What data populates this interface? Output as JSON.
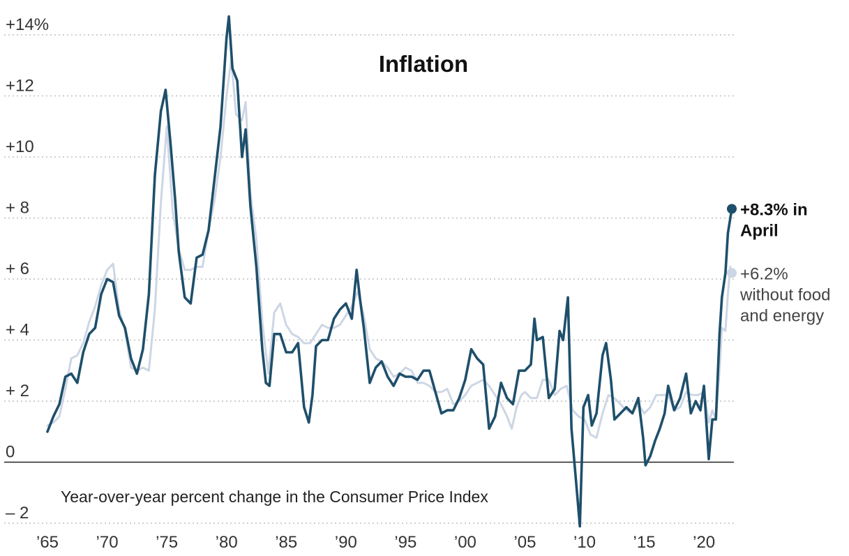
{
  "chart_data": {
    "type": "line",
    "title": "Inflation",
    "subtitle": "Year-over-year percent change in the Consumer Price Index",
    "xlim": [
      1965,
      2022.33
    ],
    "ylim": [
      -2,
      14
    ],
    "y_ticks": [
      {
        "value": 14,
        "label": "+14%"
      },
      {
        "value": 12,
        "label": "+12"
      },
      {
        "value": 10,
        "label": "+10"
      },
      {
        "value": 8,
        "label": "+ 8"
      },
      {
        "value": 6,
        "label": "+ 6"
      },
      {
        "value": 4,
        "label": "+ 4"
      },
      {
        "value": 2,
        "label": "+ 2"
      },
      {
        "value": 0,
        "label": "0"
      },
      {
        "value": -2,
        "label": "– 2"
      }
    ],
    "x_ticks": [
      {
        "value": 1965,
        "label": "’65"
      },
      {
        "value": 1970,
        "label": "’70"
      },
      {
        "value": 1975,
        "label": "’75"
      },
      {
        "value": 1980,
        "label": "’80"
      },
      {
        "value": 1985,
        "label": "’85"
      },
      {
        "value": 1990,
        "label": "’90"
      },
      {
        "value": 1995,
        "label": "’95"
      },
      {
        "value": 2000,
        "label": "’00"
      },
      {
        "value": 2005,
        "label": "’05"
      },
      {
        "value": 2010,
        "label": "’10"
      },
      {
        "value": 2015,
        "label": "’15"
      },
      {
        "value": 2020,
        "label": "’20"
      }
    ],
    "grid": true,
    "series": [
      {
        "key": "headline",
        "color": "#1e4f6b",
        "label_lines": [
          "+8.3% in",
          "April"
        ],
        "end_value": 8.3,
        "points": [
          [
            1965.0,
            1.0
          ],
          [
            1965.5,
            1.5
          ],
          [
            1966.0,
            1.9
          ],
          [
            1966.5,
            2.8
          ],
          [
            1967.0,
            2.9
          ],
          [
            1967.5,
            2.6
          ],
          [
            1968.0,
            3.6
          ],
          [
            1968.5,
            4.2
          ],
          [
            1969.0,
            4.4
          ],
          [
            1969.5,
            5.5
          ],
          [
            1970.0,
            6.0
          ],
          [
            1970.5,
            5.9
          ],
          [
            1971.0,
            4.8
          ],
          [
            1971.5,
            4.4
          ],
          [
            1972.0,
            3.4
          ],
          [
            1972.5,
            2.9
          ],
          [
            1973.0,
            3.7
          ],
          [
            1973.5,
            5.5
          ],
          [
            1974.0,
            9.4
          ],
          [
            1974.5,
            11.5
          ],
          [
            1974.9,
            12.2
          ],
          [
            1975.3,
            10.5
          ],
          [
            1975.7,
            8.6
          ],
          [
            1976.0,
            6.9
          ],
          [
            1976.5,
            5.4
          ],
          [
            1977.0,
            5.2
          ],
          [
            1977.5,
            6.7
          ],
          [
            1978.0,
            6.8
          ],
          [
            1978.5,
            7.6
          ],
          [
            1979.0,
            9.3
          ],
          [
            1979.5,
            11.0
          ],
          [
            1980.0,
            13.9
          ],
          [
            1980.2,
            14.6
          ],
          [
            1980.5,
            12.9
          ],
          [
            1980.9,
            12.5
          ],
          [
            1981.3,
            10.0
          ],
          [
            1981.6,
            10.9
          ],
          [
            1982.0,
            8.4
          ],
          [
            1982.5,
            6.4
          ],
          [
            1983.0,
            3.7
          ],
          [
            1983.3,
            2.6
          ],
          [
            1983.6,
            2.5
          ],
          [
            1984.0,
            4.2
          ],
          [
            1984.5,
            4.2
          ],
          [
            1985.0,
            3.6
          ],
          [
            1985.5,
            3.6
          ],
          [
            1986.0,
            3.9
          ],
          [
            1986.5,
            1.8
          ],
          [
            1986.9,
            1.3
          ],
          [
            1987.2,
            2.2
          ],
          [
            1987.5,
            3.8
          ],
          [
            1988.0,
            4.0
          ],
          [
            1988.5,
            4.0
          ],
          [
            1989.0,
            4.7
          ],
          [
            1989.5,
            5.0
          ],
          [
            1990.0,
            5.2
          ],
          [
            1990.5,
            4.7
          ],
          [
            1990.9,
            6.3
          ],
          [
            1991.2,
            5.3
          ],
          [
            1991.5,
            4.4
          ],
          [
            1992.0,
            2.6
          ],
          [
            1992.5,
            3.1
          ],
          [
            1993.0,
            3.3
          ],
          [
            1993.5,
            2.8
          ],
          [
            1994.0,
            2.5
          ],
          [
            1994.5,
            2.9
          ],
          [
            1995.0,
            2.8
          ],
          [
            1995.5,
            2.8
          ],
          [
            1996.0,
            2.7
          ],
          [
            1996.5,
            3.0
          ],
          [
            1997.0,
            3.0
          ],
          [
            1997.5,
            2.3
          ],
          [
            1998.0,
            1.6
          ],
          [
            1998.5,
            1.7
          ],
          [
            1999.0,
            1.7
          ],
          [
            1999.5,
            2.1
          ],
          [
            2000.0,
            2.7
          ],
          [
            2000.5,
            3.7
          ],
          [
            2001.0,
            3.4
          ],
          [
            2001.5,
            3.2
          ],
          [
            2002.0,
            1.1
          ],
          [
            2002.5,
            1.5
          ],
          [
            2003.0,
            2.6
          ],
          [
            2003.5,
            2.1
          ],
          [
            2004.0,
            1.9
          ],
          [
            2004.5,
            3.0
          ],
          [
            2005.0,
            3.0
          ],
          [
            2005.5,
            3.2
          ],
          [
            2005.8,
            4.7
          ],
          [
            2006.0,
            4.0
          ],
          [
            2006.5,
            4.1
          ],
          [
            2007.0,
            2.1
          ],
          [
            2007.5,
            2.4
          ],
          [
            2007.9,
            4.3
          ],
          [
            2008.2,
            4.0
          ],
          [
            2008.6,
            5.4
          ],
          [
            2008.9,
            1.1
          ],
          [
            2009.3,
            -0.7
          ],
          [
            2009.6,
            -2.1
          ],
          [
            2009.9,
            1.8
          ],
          [
            2010.3,
            2.2
          ],
          [
            2010.6,
            1.2
          ],
          [
            2011.0,
            1.6
          ],
          [
            2011.5,
            3.5
          ],
          [
            2011.8,
            3.9
          ],
          [
            2012.2,
            2.7
          ],
          [
            2012.5,
            1.4
          ],
          [
            2013.0,
            1.6
          ],
          [
            2013.5,
            1.8
          ],
          [
            2014.0,
            1.6
          ],
          [
            2014.5,
            2.1
          ],
          [
            2014.9,
            0.8
          ],
          [
            2015.1,
            -0.1
          ],
          [
            2015.5,
            0.2
          ],
          [
            2015.9,
            0.7
          ],
          [
            2016.3,
            1.1
          ],
          [
            2016.7,
            1.6
          ],
          [
            2017.0,
            2.5
          ],
          [
            2017.5,
            1.7
          ],
          [
            2018.0,
            2.1
          ],
          [
            2018.5,
            2.9
          ],
          [
            2018.9,
            1.6
          ],
          [
            2019.3,
            2.0
          ],
          [
            2019.7,
            1.7
          ],
          [
            2020.0,
            2.5
          ],
          [
            2020.4,
            0.1
          ],
          [
            2020.7,
            1.4
          ],
          [
            2021.0,
            1.4
          ],
          [
            2021.3,
            4.2
          ],
          [
            2021.5,
            5.4
          ],
          [
            2021.8,
            6.2
          ],
          [
            2022.0,
            7.5
          ],
          [
            2022.33,
            8.3
          ]
        ]
      },
      {
        "key": "core",
        "color": "#cdd6e4",
        "label_lines": [
          "+6.2%",
          "without food",
          "and energy"
        ],
        "end_value": 6.2,
        "points": [
          [
            1965.0,
            1.2
          ],
          [
            1965.5,
            1.3
          ],
          [
            1966.0,
            1.5
          ],
          [
            1966.5,
            2.4
          ],
          [
            1967.0,
            3.4
          ],
          [
            1967.5,
            3.5
          ],
          [
            1968.0,
            3.9
          ],
          [
            1968.5,
            4.6
          ],
          [
            1969.0,
            5.1
          ],
          [
            1969.5,
            5.8
          ],
          [
            1970.0,
            6.3
          ],
          [
            1970.5,
            6.5
          ],
          [
            1971.0,
            5.0
          ],
          [
            1971.5,
            4.3
          ],
          [
            1972.0,
            3.1
          ],
          [
            1972.5,
            3.0
          ],
          [
            1973.0,
            3.1
          ],
          [
            1973.5,
            3.0
          ],
          [
            1974.0,
            5.0
          ],
          [
            1974.5,
            8.5
          ],
          [
            1975.0,
            11.0
          ],
          [
            1975.5,
            8.2
          ],
          [
            1976.0,
            7.0
          ],
          [
            1976.5,
            6.3
          ],
          [
            1977.0,
            6.3
          ],
          [
            1977.5,
            6.4
          ],
          [
            1978.0,
            6.4
          ],
          [
            1978.5,
            7.6
          ],
          [
            1979.0,
            8.6
          ],
          [
            1979.5,
            10.0
          ],
          [
            1980.0,
            12.0
          ],
          [
            1980.4,
            13.2
          ],
          [
            1980.8,
            11.4
          ],
          [
            1981.3,
            11.2
          ],
          [
            1981.6,
            11.8
          ],
          [
            1982.0,
            8.8
          ],
          [
            1982.5,
            7.3
          ],
          [
            1983.0,
            4.6
          ],
          [
            1983.5,
            2.9
          ],
          [
            1984.0,
            4.9
          ],
          [
            1984.5,
            5.2
          ],
          [
            1985.0,
            4.5
          ],
          [
            1985.5,
            4.2
          ],
          [
            1986.0,
            4.1
          ],
          [
            1986.5,
            3.9
          ],
          [
            1987.0,
            3.9
          ],
          [
            1987.5,
            4.2
          ],
          [
            1988.0,
            4.5
          ],
          [
            1988.5,
            4.4
          ],
          [
            1989.0,
            4.4
          ],
          [
            1989.5,
            4.5
          ],
          [
            1990.0,
            4.8
          ],
          [
            1990.5,
            5.1
          ],
          [
            1991.0,
            5.6
          ],
          [
            1991.5,
            4.8
          ],
          [
            1992.0,
            3.7
          ],
          [
            1992.5,
            3.4
          ],
          [
            1993.0,
            3.3
          ],
          [
            1993.5,
            3.1
          ],
          [
            1994.0,
            2.8
          ],
          [
            1994.5,
            2.9
          ],
          [
            1995.0,
            3.1
          ],
          [
            1995.5,
            3.0
          ],
          [
            1996.0,
            2.6
          ],
          [
            1996.5,
            2.6
          ],
          [
            1997.0,
            2.5
          ],
          [
            1997.5,
            2.3
          ],
          [
            1998.0,
            2.3
          ],
          [
            1998.5,
            2.4
          ],
          [
            1999.0,
            1.9
          ],
          [
            1999.5,
            2.0
          ],
          [
            2000.0,
            2.2
          ],
          [
            2000.5,
            2.5
          ],
          [
            2001.0,
            2.6
          ],
          [
            2001.5,
            2.7
          ],
          [
            2002.0,
            2.5
          ],
          [
            2002.5,
            2.2
          ],
          [
            2003.0,
            1.9
          ],
          [
            2003.5,
            1.5
          ],
          [
            2003.9,
            1.1
          ],
          [
            2004.3,
            1.8
          ],
          [
            2004.7,
            2.2
          ],
          [
            2005.0,
            2.3
          ],
          [
            2005.5,
            2.1
          ],
          [
            2006.0,
            2.1
          ],
          [
            2006.5,
            2.7
          ],
          [
            2007.0,
            2.7
          ],
          [
            2007.5,
            2.2
          ],
          [
            2008.0,
            2.4
          ],
          [
            2008.5,
            2.5
          ],
          [
            2009.0,
            1.7
          ],
          [
            2009.5,
            1.5
          ],
          [
            2010.0,
            1.4
          ],
          [
            2010.5,
            0.9
          ],
          [
            2011.0,
            0.8
          ],
          [
            2011.5,
            1.6
          ],
          [
            2012.0,
            2.2
          ],
          [
            2012.5,
            2.1
          ],
          [
            2013.0,
            1.9
          ],
          [
            2013.5,
            1.7
          ],
          [
            2014.0,
            1.6
          ],
          [
            2014.5,
            1.9
          ],
          [
            2015.0,
            1.6
          ],
          [
            2015.5,
            1.8
          ],
          [
            2016.0,
            2.2
          ],
          [
            2016.5,
            2.2
          ],
          [
            2017.0,
            2.2
          ],
          [
            2017.5,
            1.7
          ],
          [
            2018.0,
            1.8
          ],
          [
            2018.5,
            2.3
          ],
          [
            2019.0,
            2.2
          ],
          [
            2019.5,
            2.2
          ],
          [
            2020.0,
            2.3
          ],
          [
            2020.4,
            1.3
          ],
          [
            2020.7,
            1.7
          ],
          [
            2021.0,
            1.4
          ],
          [
            2021.3,
            3.0
          ],
          [
            2021.5,
            4.4
          ],
          [
            2021.8,
            4.3
          ],
          [
            2022.0,
            5.5
          ],
          [
            2022.2,
            6.4
          ],
          [
            2022.33,
            6.2
          ]
        ]
      }
    ]
  }
}
